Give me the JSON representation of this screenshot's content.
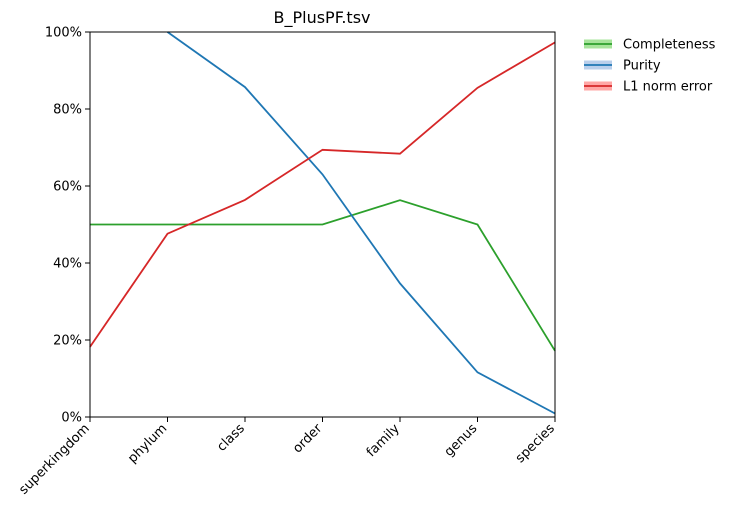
{
  "chart_data": {
    "type": "line",
    "title": "B_PlusPF.tsv",
    "xlabel": "",
    "ylabel": "",
    "ylim": [
      0,
      100
    ],
    "y_ticks": [
      "0%",
      "20%",
      "40%",
      "60%",
      "80%",
      "100%"
    ],
    "y_tick_values": [
      0,
      20,
      40,
      60,
      80,
      100
    ],
    "categories": [
      "superkingdom",
      "phylum",
      "class",
      "order",
      "family",
      "genus",
      "species"
    ],
    "legend_position": "outside-top-right",
    "grid": false,
    "series": [
      {
        "name": "Completeness",
        "color": "#2ca02c",
        "fill": "#98df8a",
        "values": [
          50,
          50,
          50,
          50,
          56.3,
          50,
          17.2
        ]
      },
      {
        "name": "Purity",
        "color": "#1f77b4",
        "fill": "#aec7e8",
        "values": [
          null,
          100,
          85.7,
          63.0,
          34.7,
          11.6,
          0.9
        ]
      },
      {
        "name": "L1 norm error",
        "color": "#d62728",
        "fill": "#ff9896",
        "values": [
          18.2,
          47.6,
          56.4,
          69.4,
          68.4,
          85.5,
          97.3
        ]
      }
    ]
  }
}
